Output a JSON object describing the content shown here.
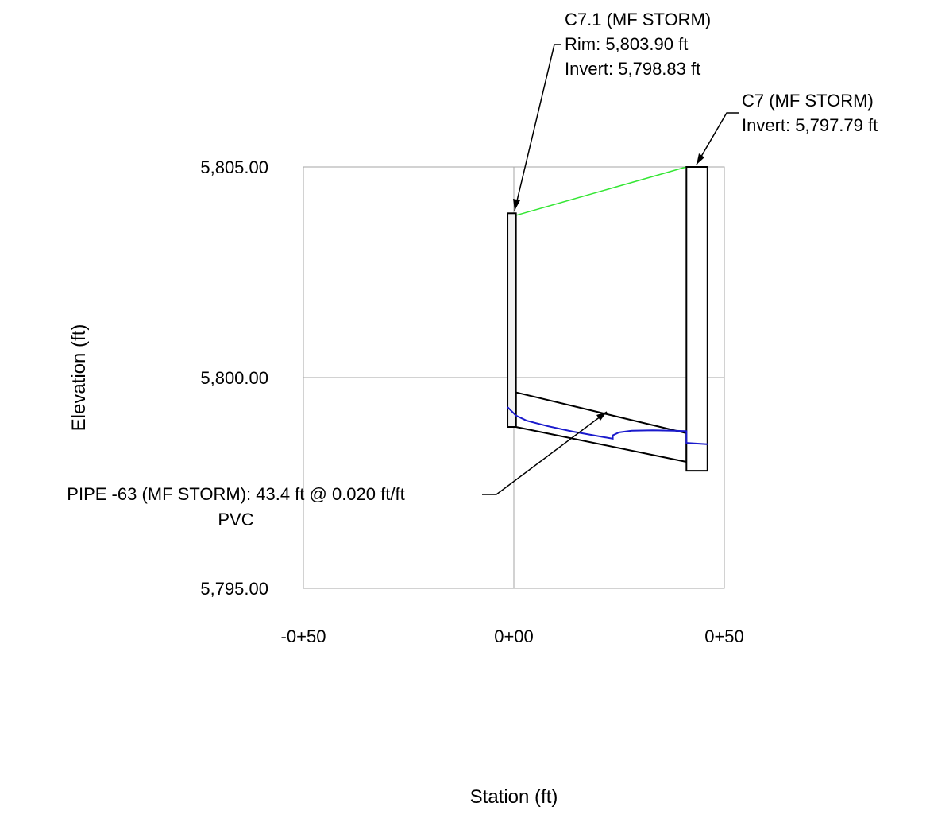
{
  "chart_data": {
    "type": "profile",
    "xlabel": "Station (ft)",
    "ylabel": "Elevation (ft)",
    "xlim": [
      -50,
      50
    ],
    "ylim": [
      5795.0,
      5805.0
    ],
    "x_ticks": [
      {
        "value": -50,
        "label": "-0+50"
      },
      {
        "value": 0,
        "label": "0+00"
      },
      {
        "value": 50,
        "label": "0+50"
      }
    ],
    "y_ticks": [
      {
        "value": 5805.0,
        "label": "5,805.00"
      },
      {
        "value": 5800.0,
        "label": "5,800.00"
      },
      {
        "value": 5795.0,
        "label": "5,795.00"
      }
    ],
    "grid": true,
    "structures": [
      {
        "id": "C7.1",
        "station_left": -1.5,
        "station_right": 0.5,
        "top_elevation": 5803.9,
        "bottom_elevation": 5798.83,
        "label_lines": [
          "C7.1 (MF STORM)",
          "Rim: 5,803.90 ft",
          "Invert: 5,798.83 ft"
        ]
      },
      {
        "id": "C7",
        "station_left": 41.0,
        "station_right": 46.0,
        "top_elevation": 5805.0,
        "bottom_elevation": 5797.79,
        "label_lines": [
          "C7 (MF STORM)",
          "Invert: 5,797.79 ft"
        ]
      }
    ],
    "pipe": {
      "start_station": 0.5,
      "end_station": 41.0,
      "start_invert": 5798.83,
      "end_invert": 5798.0,
      "start_crown": 5799.65,
      "end_crown": 5798.68,
      "label_lines": [
        "PIPE -63 (MF STORM): 43.4 ft @ 0.020 ft/ft",
        "PVC"
      ]
    },
    "ground_line": {
      "color": "#33e633",
      "points": [
        [
          0.5,
          5803.85
        ],
        [
          41.0,
          5805.0
        ]
      ]
    },
    "hgl": {
      "color": "#1a1acc",
      "points": [
        [
          -1.5,
          5799.3
        ],
        [
          0.5,
          5799.1
        ],
        [
          3,
          5798.98
        ],
        [
          8,
          5798.85
        ],
        [
          14,
          5798.72
        ],
        [
          19,
          5798.63
        ],
        [
          23.5,
          5798.55
        ],
        [
          23.5,
          5798.63
        ],
        [
          25,
          5798.7
        ],
        [
          28,
          5798.74
        ],
        [
          33,
          5798.75
        ],
        [
          38,
          5798.74
        ],
        [
          41,
          5798.73
        ],
        [
          41,
          5798.45
        ],
        [
          46,
          5798.42
        ]
      ]
    }
  }
}
